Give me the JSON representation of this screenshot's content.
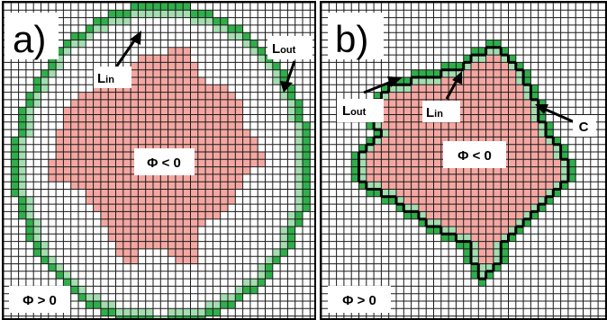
{
  "colors": {
    "interior": "#f4a7a1",
    "inner_boundary": "#a3ddb0",
    "outer_boundary": "#2fae4a",
    "grid": "#1a1a1a",
    "background": "#ffffff",
    "contour": "#000000"
  },
  "panel_a": {
    "letter": "a)",
    "interior_label": "Φ < 0",
    "exterior_label": "Φ > 0",
    "label_lin_main": "L",
    "label_lin_sub": "in",
    "label_lout_main": "L",
    "label_lout_sub": "out"
  },
  "panel_b": {
    "letter": "b)",
    "interior_label": "Φ < 0",
    "exterior_label": "Φ > 0",
    "label_lin_main": "L",
    "label_lin_sub": "in",
    "label_lout_main": "L",
    "label_lout_sub": "out",
    "label_c": "C"
  }
}
